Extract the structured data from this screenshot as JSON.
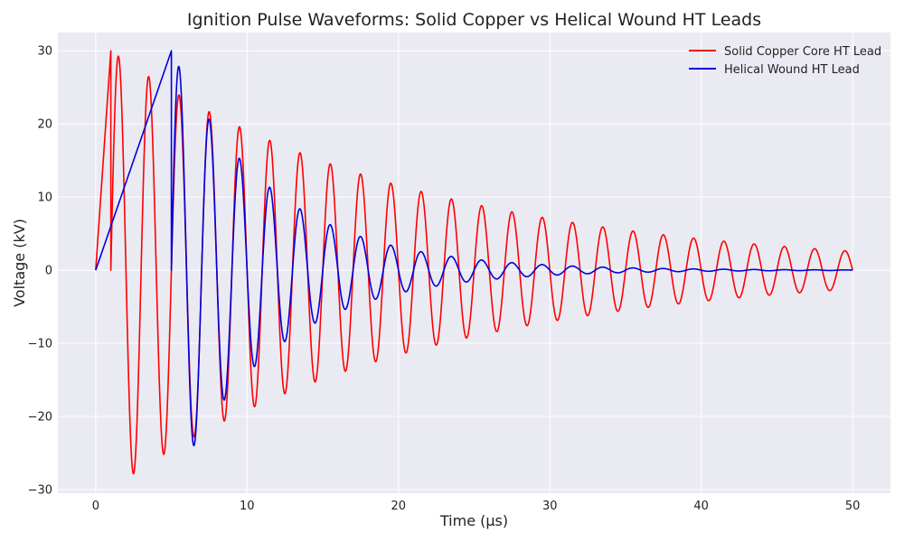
{
  "chart_data": {
    "type": "line",
    "title": "Ignition Pulse Waveforms: Solid Copper vs Helical Wound HT Leads",
    "xlabel": "Time (µs)",
    "ylabel": "Voltage (kV)",
    "xlim": [
      -2.5,
      52.5
    ],
    "ylim": [
      -30.5,
      32.5
    ],
    "xticks": [
      0,
      10,
      20,
      30,
      40,
      50
    ],
    "yticks": [
      -30,
      -20,
      -10,
      0,
      10,
      20,
      30
    ],
    "xtick_labels": [
      "0",
      "10",
      "20",
      "30",
      "40",
      "50"
    ],
    "ytick_labels": [
      "−30",
      "−20",
      "−10",
      "0",
      "10",
      "20",
      "30"
    ],
    "grid": true,
    "legend_position": "top-right",
    "background_color": "#eaeaf2",
    "series": [
      {
        "name": "Solid Copper Core HT Lead",
        "color": "#ff0000",
        "model": {
          "rise_end_us": 1.0,
          "peak_kv": 30,
          "period_us": 2.0,
          "decay_time_constant_us": 20
        }
      },
      {
        "name": "Helical Wound HT Lead",
        "color": "#0000dd",
        "model": {
          "rise_end_us": 5.0,
          "peak_kv": 30,
          "period_us": 2.0,
          "decay_time_constant_us": 6.67
        }
      }
    ]
  }
}
